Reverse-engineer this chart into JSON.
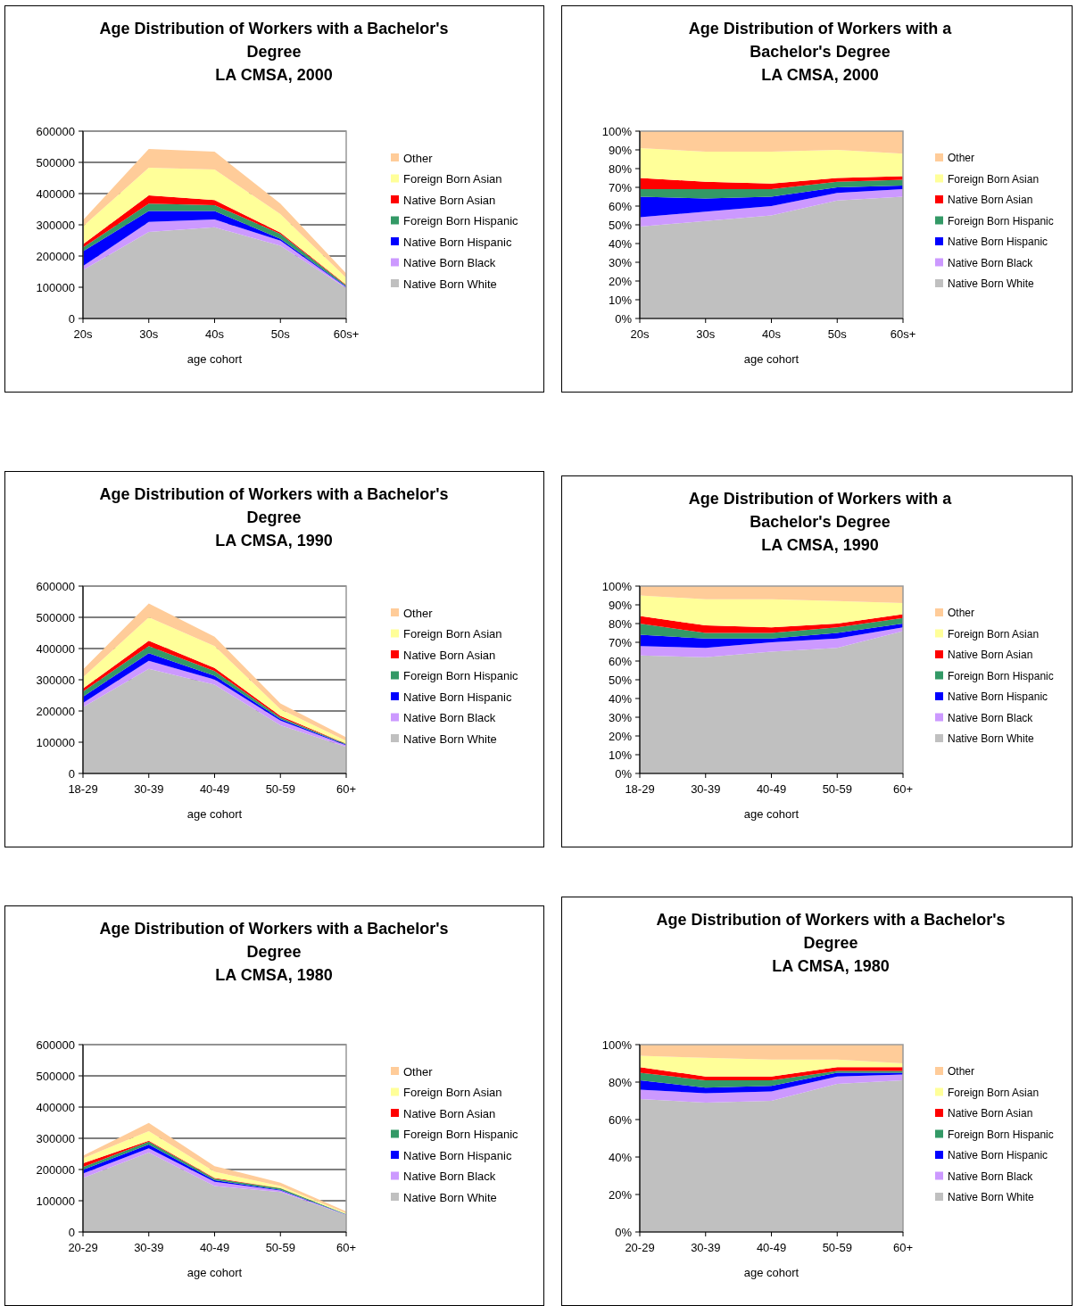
{
  "chart_data": [
    {
      "type": "area",
      "title": "Age Distribution of Workers with a Bachelor's Degree",
      "subtitle": "LA CMSA, 2000",
      "xlabel": "age cohort",
      "categories": [
        "20s",
        "30s",
        "40s",
        "50s",
        "60s+"
      ],
      "stacked": true,
      "ylim": [
        0,
        600000
      ],
      "yticks": [
        0,
        100000,
        200000,
        300000,
        400000,
        500000,
        600000
      ],
      "grid": "y",
      "legend": "right",
      "series": [
        {
          "name": "Native Born White",
          "color": "#c0c0c0",
          "values": [
            155000,
            277000,
            292000,
            233000,
            97000
          ]
        },
        {
          "name": "Native Born Black",
          "color": "#cc99ff",
          "values": [
            13000,
            32000,
            25000,
            16000,
            3000
          ]
        },
        {
          "name": "Native Born Hispanic",
          "color": "#0000ff",
          "values": [
            47000,
            35000,
            27000,
            6000,
            2000
          ]
        },
        {
          "name": "Foreign Born Hispanic",
          "color": "#339966",
          "values": [
            12000,
            24000,
            19000,
            16000,
            4000
          ]
        },
        {
          "name": "Native Born Asian",
          "color": "#ff0000",
          "values": [
            11000,
            26000,
            16000,
            4000,
            2000
          ]
        },
        {
          "name": "Foreign Born Asian",
          "color": "#ffff99",
          "values": [
            57000,
            89000,
            98000,
            59000,
            22000
          ]
        },
        {
          "name": "Other",
          "color": "#ffcc99",
          "values": [
            20000,
            60000,
            57000,
            34000,
            14000
          ]
        }
      ]
    },
    {
      "type": "area",
      "title": "Age Distribution of Workers with a Bachelor's Degree",
      "subtitle": "LA CMSA, 2000",
      "xlabel": "age cohort",
      "categories": [
        "20s",
        "30s",
        "40s",
        "50s",
        "60s+"
      ],
      "stacked": true,
      "ylim": [
        0,
        100
      ],
      "yticks": [
        {
          "value": 0,
          "label": "0%"
        },
        {
          "value": 10,
          "label": "10%"
        },
        {
          "value": 20,
          "label": "20%"
        },
        {
          "value": 30,
          "label": "30%"
        },
        {
          "value": 40,
          "label": "40%"
        },
        {
          "value": 50,
          "label": "50%"
        },
        {
          "value": 60,
          "label": "60%"
        },
        {
          "value": 70,
          "label": "70%"
        },
        {
          "value": 80,
          "label": "80%"
        },
        {
          "value": 90,
          "label": "90%"
        },
        {
          "value": 100,
          "label": "100%"
        }
      ],
      "legend": "right",
      "series": [
        {
          "name": "Native Born White",
          "color": "#c0c0c0",
          "values": [
            49,
            52,
            55,
            63,
            65
          ]
        },
        {
          "name": "Native Born Black",
          "color": "#cc99ff",
          "values": [
            5,
            5,
            5,
            4,
            4
          ]
        },
        {
          "name": "Native Born Hispanic",
          "color": "#0000ff",
          "values": [
            11,
            7,
            5,
            3,
            2
          ]
        },
        {
          "name": "Foreign Born Hispanic",
          "color": "#339966",
          "values": [
            4,
            5,
            4,
            3,
            3
          ]
        },
        {
          "name": "Native Born Asian",
          "color": "#ff0000",
          "values": [
            6,
            4,
            3,
            2,
            2
          ]
        },
        {
          "name": "Foreign Born Asian",
          "color": "#ffff99",
          "values": [
            16,
            16,
            17,
            15,
            12
          ]
        },
        {
          "name": "Other",
          "color": "#ffcc99",
          "values": [
            9,
            11,
            11,
            10,
            12
          ]
        }
      ]
    },
    {
      "type": "area",
      "title": "Age Distribution of Workers with a Bachelor's Degree",
      "subtitle": "LA CMSA, 1990",
      "xlabel": "age cohort",
      "categories": [
        "18-29",
        "30-39",
        "40-49",
        "50-59",
        "60+"
      ],
      "stacked": true,
      "ylim": [
        0,
        600000
      ],
      "yticks": [
        0,
        100000,
        200000,
        300000,
        400000,
        500000,
        600000
      ],
      "grid": "y",
      "legend": "right",
      "series": [
        {
          "name": "Native Born White",
          "color": "#c0c0c0",
          "values": [
            212000,
            335000,
            284000,
            154000,
            85000
          ]
        },
        {
          "name": "Native Born Black",
          "color": "#cc99ff",
          "values": [
            14000,
            26000,
            17000,
            15000,
            5000
          ]
        },
        {
          "name": "Native Born Hispanic",
          "color": "#0000ff",
          "values": [
            20000,
            24000,
            12000,
            5000,
            2000
          ]
        },
        {
          "name": "Foreign Born Hispanic",
          "color": "#339966",
          "values": [
            16000,
            23000,
            15000,
            5000,
            2000
          ]
        },
        {
          "name": "Native Born Asian",
          "color": "#ff0000",
          "values": [
            10000,
            17000,
            10000,
            5000,
            1000
          ]
        },
        {
          "name": "Foreign Born Asian",
          "color": "#ffff99",
          "values": [
            36000,
            75000,
            70000,
            22000,
            9000
          ]
        },
        {
          "name": "Other",
          "color": "#ffcc99",
          "values": [
            25000,
            44000,
            30000,
            18000,
            12000
          ]
        }
      ]
    },
    {
      "type": "area",
      "title": "Age Distribution of Workers with a Bachelor's Degree",
      "subtitle": "LA CMSA, 1990",
      "xlabel": "age cohort",
      "categories": [
        "18-29",
        "30-39",
        "40-49",
        "50-59",
        "60+"
      ],
      "stacked": true,
      "ylim": [
        0,
        100
      ],
      "yticks": [
        {
          "value": 0,
          "label": "0%"
        },
        {
          "value": 10,
          "label": "10%"
        },
        {
          "value": 20,
          "label": "20%"
        },
        {
          "value": 30,
          "label": "30%"
        },
        {
          "value": 40,
          "label": "40%"
        },
        {
          "value": 50,
          "label": "50%"
        },
        {
          "value": 60,
          "label": "60%"
        },
        {
          "value": 70,
          "label": "70%"
        },
        {
          "value": 80,
          "label": "80%"
        },
        {
          "value": 90,
          "label": "90%"
        },
        {
          "value": 100,
          "label": "100%"
        }
      ],
      "legend": "right",
      "series": [
        {
          "name": "Native Born White",
          "color": "#c0c0c0",
          "values": [
            63,
            62,
            65,
            67,
            76
          ]
        },
        {
          "name": "Native Born Black",
          "color": "#cc99ff",
          "values": [
            5,
            5,
            5,
            5,
            2
          ]
        },
        {
          "name": "Native Born Hispanic",
          "color": "#0000ff",
          "values": [
            6,
            5,
            2,
            3,
            2
          ]
        },
        {
          "name": "Foreign Born Hispanic",
          "color": "#339966",
          "values": [
            6,
            3,
            3,
            3,
            3
          ]
        },
        {
          "name": "Native Born Asian",
          "color": "#ff0000",
          "values": [
            4,
            4,
            3,
            2,
            2
          ]
        },
        {
          "name": "Foreign Born Asian",
          "color": "#ffff99",
          "values": [
            11,
            14,
            15,
            12,
            6
          ]
        },
        {
          "name": "Other",
          "color": "#ffcc99",
          "values": [
            5,
            7,
            7,
            8,
            9
          ]
        }
      ]
    },
    {
      "type": "area",
      "title": "Age Distribution of Workers with a Bachelor's Degree",
      "subtitle": "LA CMSA, 1980",
      "xlabel": "age cohort",
      "categories": [
        "20-29",
        "30-39",
        "40-49",
        "50-59",
        "60+"
      ],
      "stacked": true,
      "ylim": [
        0,
        600000
      ],
      "yticks": [
        0,
        100000,
        200000,
        300000,
        400000,
        500000,
        600000
      ],
      "grid": "y",
      "legend": "right",
      "series": [
        {
          "name": "Native Born White",
          "color": "#c0c0c0",
          "values": [
            173000,
            254000,
            147000,
            128000,
            54000
          ]
        },
        {
          "name": "Native Born Black",
          "color": "#cc99ff",
          "values": [
            14000,
            14000,
            14000,
            5000,
            1000
          ]
        },
        {
          "name": "Native Born Hispanic",
          "color": "#0000ff",
          "values": [
            12000,
            12000,
            5000,
            2000,
            1000
          ]
        },
        {
          "name": "Foreign Born Hispanic",
          "color": "#339966",
          "values": [
            9000,
            9000,
            5000,
            5000,
            1000
          ]
        },
        {
          "name": "Native Born Asian",
          "color": "#ff0000",
          "values": [
            12000,
            3000,
            2000,
            1000,
            0
          ]
        },
        {
          "name": "Foreign Born Asian",
          "color": "#ffff99",
          "values": [
            16000,
            31000,
            20000,
            6000,
            3000
          ]
        },
        {
          "name": "Other",
          "color": "#ffcc99",
          "values": [
            8000,
            26000,
            18000,
            11000,
            6000
          ]
        }
      ]
    },
    {
      "type": "area",
      "title": "Age Distribution of Workers with a Bachelor's Degree",
      "subtitle": "LA CMSA, 1980",
      "xlabel": "age cohort",
      "categories": [
        "20-29",
        "30-39",
        "40-49",
        "50-59",
        "60+"
      ],
      "stacked": true,
      "ylim": [
        0,
        100
      ],
      "yticks": [
        {
          "value": 0,
          "label": "0%"
        },
        {
          "value": 20,
          "label": "20%"
        },
        {
          "value": 40,
          "label": "40%"
        },
        {
          "value": 60,
          "label": "60%"
        },
        {
          "value": 80,
          "label": "80%"
        },
        {
          "value": 100,
          "label": "100%"
        }
      ],
      "legend": "right",
      "series": [
        {
          "name": "Native Born White",
          "color": "#c0c0c0",
          "values": [
            71,
            69,
            70,
            79,
            81
          ]
        },
        {
          "name": "Native Born Black",
          "color": "#cc99ff",
          "values": [
            5,
            5,
            5,
            4,
            3
          ]
        },
        {
          "name": "Native Born Hispanic",
          "color": "#0000ff",
          "values": [
            5,
            3,
            3,
            2,
            1
          ]
        },
        {
          "name": "Foreign Born Hispanic",
          "color": "#339966",
          "values": [
            4,
            4,
            3,
            1,
            1
          ]
        },
        {
          "name": "Native Born Asian",
          "color": "#ff0000",
          "values": [
            3,
            2,
            2,
            2,
            2
          ]
        },
        {
          "name": "Foreign Born Asian",
          "color": "#ffff99",
          "values": [
            6,
            10,
            9,
            4,
            2
          ]
        },
        {
          "name": "Other",
          "color": "#ffcc99",
          "values": [
            6,
            7,
            8,
            8,
            10
          ]
        }
      ]
    }
  ]
}
